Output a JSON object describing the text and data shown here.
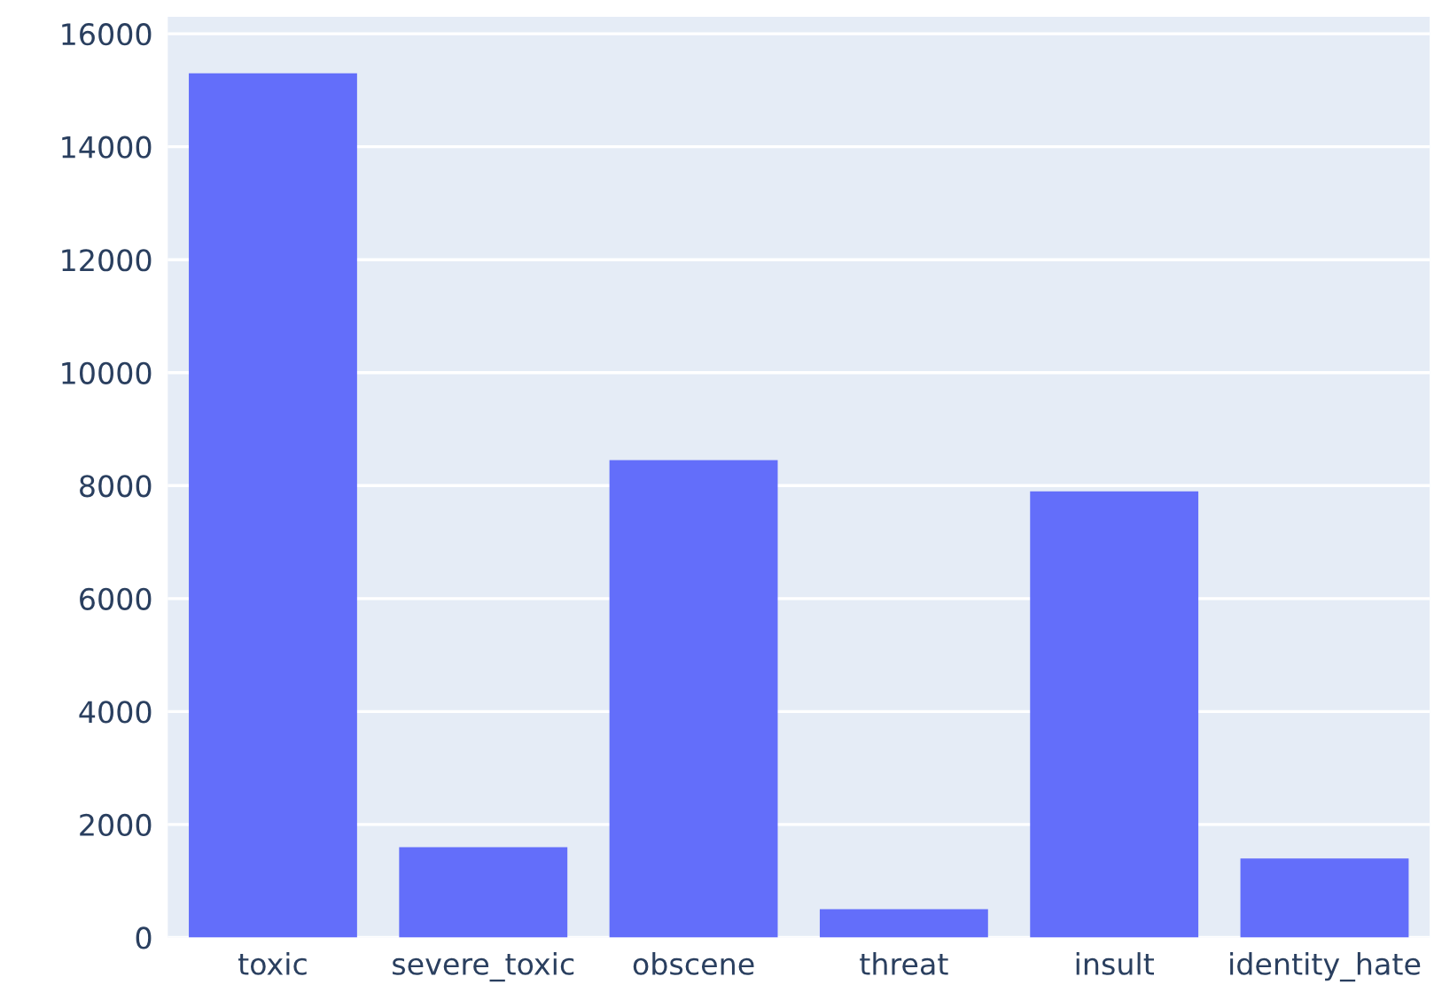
{
  "chart_data": {
    "type": "bar",
    "categories": [
      "toxic",
      "severe_toxic",
      "obscene",
      "threat",
      "insult",
      "identity_hate"
    ],
    "values": [
      15300,
      1600,
      8450,
      500,
      7900,
      1400
    ],
    "color": "#636efa",
    "ylim": [
      0,
      16300
    ],
    "yticks": [
      0,
      2000,
      4000,
      6000,
      8000,
      10000,
      12000,
      14000,
      16000
    ],
    "grid": "y"
  }
}
